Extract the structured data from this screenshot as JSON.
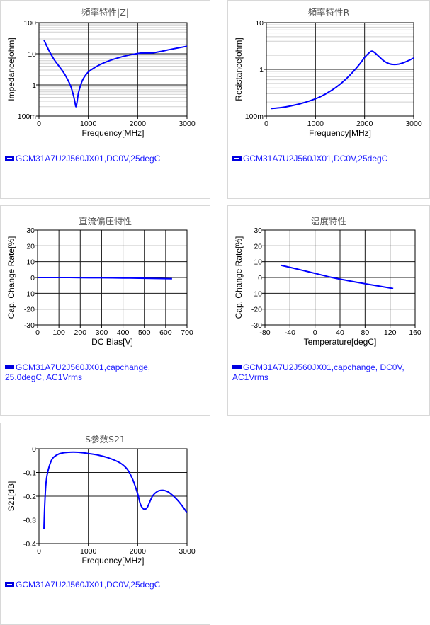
{
  "chart_data": [
    {
      "type": "line",
      "title": "頻率特性|Z|",
      "xlabel": "Frequency[MHz]",
      "ylabel": "Impedance[ohm]",
      "yscale": "log",
      "xlim": [
        0,
        3000
      ],
      "ylim": [
        0.1,
        100
      ],
      "xticks": [
        0,
        1000,
        2000,
        3000
      ],
      "yticks": [
        {
          "v": 0.1,
          "label": "100m"
        },
        {
          "v": 1,
          "label": "1"
        },
        {
          "v": 10,
          "label": "10"
        },
        {
          "v": 100,
          "label": "100"
        }
      ],
      "grid": true,
      "color": "#0000ff",
      "legend": "GCM31A7U2J560JX01,DC0V,25degC",
      "series": [
        {
          "x": [
            100,
            200,
            300,
            400,
            500,
            600,
            650,
            700,
            730,
            750,
            770,
            800,
            850,
            900,
            1000,
            1200,
            1400,
            1600,
            1800,
            2000,
            2100,
            2300,
            2500,
            2700,
            3000
          ],
          "y": [
            28,
            13,
            6.8,
            4.1,
            2.5,
            1.3,
            0.85,
            0.45,
            0.27,
            0.2,
            0.27,
            0.55,
            1.05,
            1.6,
            2.6,
            4.2,
            5.8,
            7.4,
            8.9,
            10.2,
            10.6,
            10.7,
            12.2,
            14.2,
            17.5
          ]
        }
      ]
    },
    {
      "type": "line",
      "title": "頻率特性R",
      "xlabel": "Frequency[MHz]",
      "ylabel": "Resistance[ohm]",
      "yscale": "log",
      "xlim": [
        0,
        3000
      ],
      "ylim": [
        0.1,
        10
      ],
      "xticks": [
        0,
        1000,
        2000,
        3000
      ],
      "yticks": [
        {
          "v": 0.1,
          "label": "100m"
        },
        {
          "v": 1,
          "label": "1"
        },
        {
          "v": 10,
          "label": "10"
        }
      ],
      "grid": true,
      "color": "#0000ff",
      "legend": "GCM31A7U2J560JX01,DC0V,25degC",
      "series": [
        {
          "x": [
            100,
            300,
            500,
            700,
            900,
            1100,
            1300,
            1500,
            1700,
            1900,
            2000,
            2100,
            2150,
            2200,
            2300,
            2400,
            2500,
            2600,
            2700,
            2800,
            2900,
            3000
          ],
          "y": [
            0.145,
            0.152,
            0.165,
            0.185,
            0.215,
            0.26,
            0.34,
            0.48,
            0.75,
            1.3,
            1.8,
            2.3,
            2.45,
            2.3,
            1.85,
            1.5,
            1.32,
            1.27,
            1.3,
            1.4,
            1.55,
            1.75
          ]
        }
      ]
    },
    {
      "type": "line",
      "title": "直流偏圧特性",
      "xlabel": "DC Bias[V]",
      "ylabel": "Cap. Change Rate[%]",
      "xlim": [
        0,
        700
      ],
      "ylim": [
        -30,
        30
      ],
      "xticks": [
        0,
        100,
        200,
        300,
        400,
        500,
        600,
        700
      ],
      "yticks": [
        -30,
        -20,
        -10,
        0,
        10,
        20,
        30
      ],
      "grid": true,
      "color": "#0000ff",
      "legend": "GCM31A7U2J560JX01,capchange, 25.0degC, AC1Vrms",
      "series": [
        {
          "x": [
            0,
            100,
            200,
            300,
            400,
            500,
            630
          ],
          "y": [
            0,
            0,
            -0.1,
            -0.2,
            -0.3,
            -0.5,
            -0.8
          ]
        }
      ]
    },
    {
      "type": "line",
      "title": "温度特性",
      "xlabel": "Temperature[degC]",
      "ylabel": "Cap. Change Rate[%]",
      "xlim": [
        -80,
        160
      ],
      "ylim": [
        -30,
        30
      ],
      "xticks": [
        -80,
        -40,
        0,
        40,
        80,
        120,
        160
      ],
      "yticks": [
        -30,
        -20,
        -10,
        0,
        10,
        20,
        30
      ],
      "grid": true,
      "color": "#0000ff",
      "legend": "GCM31A7U2J560JX01,capchange, DC0V, AC1Vrms",
      "series": [
        {
          "x": [
            -55,
            -25,
            0,
            25,
            50,
            85,
            125
          ],
          "y": [
            7.8,
            5.0,
            2.6,
            0.2,
            -1.8,
            -4.3,
            -7.0
          ]
        }
      ]
    },
    {
      "type": "line",
      "title": "S参数S21",
      "xlabel": "Frequency[MHz]",
      "ylabel": "S21[dB]",
      "xlim": [
        0,
        3000
      ],
      "ylim": [
        -0.4,
        0
      ],
      "xticks": [
        0,
        1000,
        2000,
        3000
      ],
      "yticks": [
        -0.4,
        -0.3,
        -0.2,
        -0.1,
        0
      ],
      "grid": true,
      "color": "#0000ff",
      "legend": "GCM31A7U2J560JX01,DC0V,25degC",
      "series": [
        {
          "x": [
            100,
            120,
            150,
            200,
            250,
            300,
            400,
            500,
            600,
            700,
            800,
            1000,
            1200,
            1400,
            1600,
            1700,
            1800,
            1900,
            2000,
            2050,
            2100,
            2150,
            2200,
            2300,
            2400,
            2500,
            2600,
            2700,
            2800,
            2900,
            3000
          ],
          "y": [
            -0.34,
            -0.22,
            -0.13,
            -0.08,
            -0.05,
            -0.035,
            -0.022,
            -0.017,
            -0.015,
            -0.014,
            -0.015,
            -0.02,
            -0.027,
            -0.038,
            -0.055,
            -0.068,
            -0.09,
            -0.13,
            -0.19,
            -0.23,
            -0.25,
            -0.255,
            -0.245,
            -0.2,
            -0.18,
            -0.175,
            -0.18,
            -0.195,
            -0.215,
            -0.24,
            -0.27
          ]
        }
      ]
    }
  ]
}
